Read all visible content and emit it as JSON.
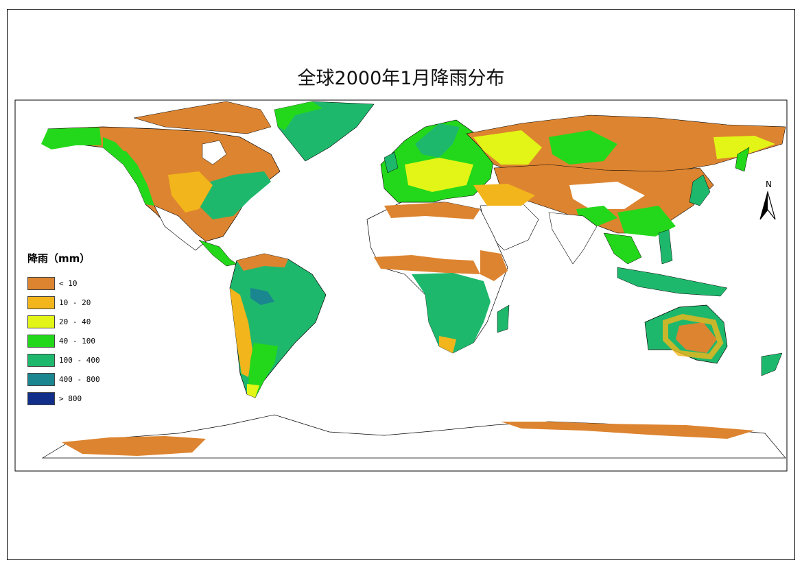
{
  "title": "全球2000年1月降雨分布",
  "legend": {
    "title": "降雨（mm）",
    "items": [
      {
        "label": "< 10",
        "color": "#dd8430"
      },
      {
        "label": "10 - 20",
        "color": "#f2b51b"
      },
      {
        "label": "20 - 40",
        "color": "#e2f516"
      },
      {
        "label": "40 - 100",
        "color": "#23d81a"
      },
      {
        "label": "100 - 400",
        "color": "#1eb86c"
      },
      {
        "label": "400 - 800",
        "color": "#1a8690"
      },
      {
        "label": "> 800",
        "color": "#112e8a"
      }
    ]
  },
  "north_label": "N"
}
